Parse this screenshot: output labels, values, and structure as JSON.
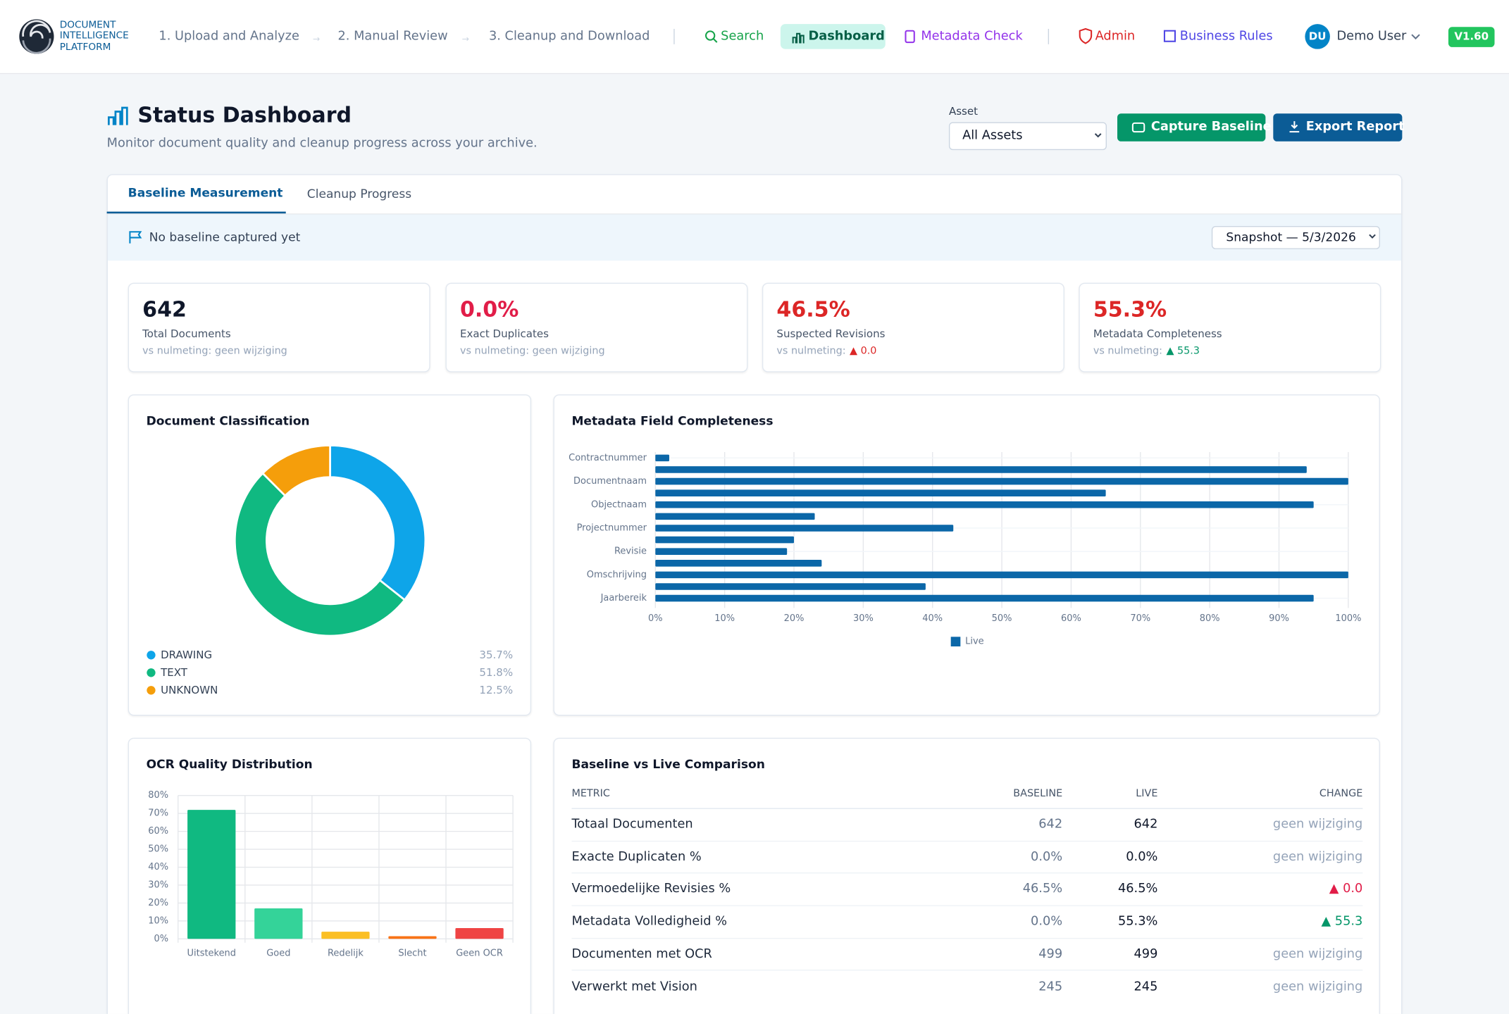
{
  "header": {
    "brand": [
      "DOCUMENT",
      "INTELLIGENCE",
      "PLATFORM"
    ],
    "steps": [
      "1. Upload and Analyze",
      "2. Manual Review",
      "3. Cleanup and Download"
    ],
    "links": [
      "Search",
      "Dashboard",
      "Metadata Check",
      "Admin",
      "Business Rules"
    ],
    "avatar": "DU",
    "user": "Demo User",
    "version": "V1.60"
  },
  "page": {
    "title": "Status Dashboard",
    "subtitle": "Monitor document quality and cleanup progress across your archive.",
    "asset_label": "Asset",
    "asset_select": "All Assets",
    "buttons": [
      "Capture Baseline",
      "Export Report"
    ]
  },
  "tabs": [
    "Baseline Measurement",
    "Cleanup Progress"
  ],
  "banner": "No baseline captured yet",
  "snapshot": "Snapshot — 5/3/2026",
  "kpis": [
    {
      "value": "642",
      "label": "Total Documents",
      "compare": "vs nulmeting: geen wijziging"
    },
    {
      "value": "0.0%",
      "label": "Exact Duplicates",
      "compare": "vs nulmeting: geen wijziging"
    },
    {
      "value": "46.5%",
      "label": "Suspected Revisions",
      "compare": "vs nulmeting:",
      "change": "▲ 0.0"
    },
    {
      "value": "55.3%",
      "label": "Metadata Completeness",
      "compare": "vs nulmeting:",
      "change": "▲ 55.3"
    }
  ],
  "chart_data": [
    {
      "type": "donut",
      "title": "Document Classification",
      "categories": [
        "DRAWING",
        "TEXT",
        "UNKNOWN"
      ],
      "values": [
        35.7,
        51.8,
        12.5
      ],
      "value_labels": [
        "35.7%",
        "51.8%",
        "12.5%"
      ],
      "colors": [
        "#0ea5e9",
        "#10b981",
        "#f59e0b"
      ]
    },
    {
      "type": "hbar",
      "title": "Metadata Field Completeness",
      "categories": [
        "Contractnummer",
        null,
        "Documentnaam",
        null,
        "Objectnaam",
        null,
        "Projectnummer",
        null,
        "Revisie",
        null,
        "Omschrijving",
        null,
        "Jaarbereik"
      ],
      "series": [
        {
          "name": "Live",
          "color": "#0b67a8",
          "values": [
            2,
            94,
            100,
            65,
            95,
            23,
            43,
            20,
            19,
            24,
            100,
            39,
            95
          ]
        }
      ],
      "xlim": [
        0,
        100
      ],
      "xticks": [
        {
          "value": 0,
          "label": "0%"
        },
        {
          "value": 10,
          "label": "10%"
        },
        {
          "value": 20,
          "label": "20%"
        },
        {
          "value": 30,
          "label": "30%"
        },
        {
          "value": 40,
          "label": "40%"
        },
        {
          "value": 50,
          "label": "50%"
        },
        {
          "value": 60,
          "label": "60%"
        },
        {
          "value": 70,
          "label": "70%"
        },
        {
          "value": 80,
          "label": "80%"
        },
        {
          "value": 90,
          "label": "90%"
        },
        {
          "value": 100,
          "label": "100%"
        }
      ],
      "grid": true
    },
    {
      "type": "bar",
      "title": "OCR Quality Distribution",
      "categories": [
        "Uitstekend",
        "Goed",
        "Redelijk",
        "Slecht",
        "Geen OCR"
      ],
      "values": [
        72,
        17,
        4,
        1.5,
        6
      ],
      "colors": [
        "#10b981",
        "#34d399",
        "#fbbf24",
        "#f97316",
        "#ef4444"
      ],
      "ylim": [
        0,
        80
      ],
      "yticks": [
        {
          "value": 0,
          "label": "0%"
        },
        {
          "value": 10,
          "label": "10%"
        },
        {
          "value": 20,
          "label": "20%"
        },
        {
          "value": 30,
          "label": "30%"
        },
        {
          "value": 40,
          "label": "40%"
        },
        {
          "value": 50,
          "label": "50%"
        },
        {
          "value": 60,
          "label": "60%"
        },
        {
          "value": 70,
          "label": "70%"
        },
        {
          "value": 80,
          "label": "80%"
        }
      ],
      "grid": true
    }
  ],
  "table": {
    "title": "Baseline vs Live Comparison",
    "columns": [
      "METRIC",
      "BASELINE",
      "LIVE",
      "CHANGE"
    ],
    "rows": [
      [
        "Totaal Documenten",
        "642",
        "642",
        "geen wijziging"
      ],
      [
        "Exacte Duplicaten %",
        "0.0%",
        "0.0%",
        "geen wijziging"
      ],
      [
        "Vermoedelijke Revisies %",
        "46.5%",
        "46.5%",
        "▲ 0.0"
      ],
      [
        "Metadata Volledigheid %",
        "0.0%",
        "55.3%",
        "▲ 55.3"
      ],
      [
        "Documenten met OCR",
        "499",
        "499",
        "geen wijziging"
      ],
      [
        "Verwerkt met Vision",
        "245",
        "245",
        "geen wijziging"
      ]
    ]
  }
}
